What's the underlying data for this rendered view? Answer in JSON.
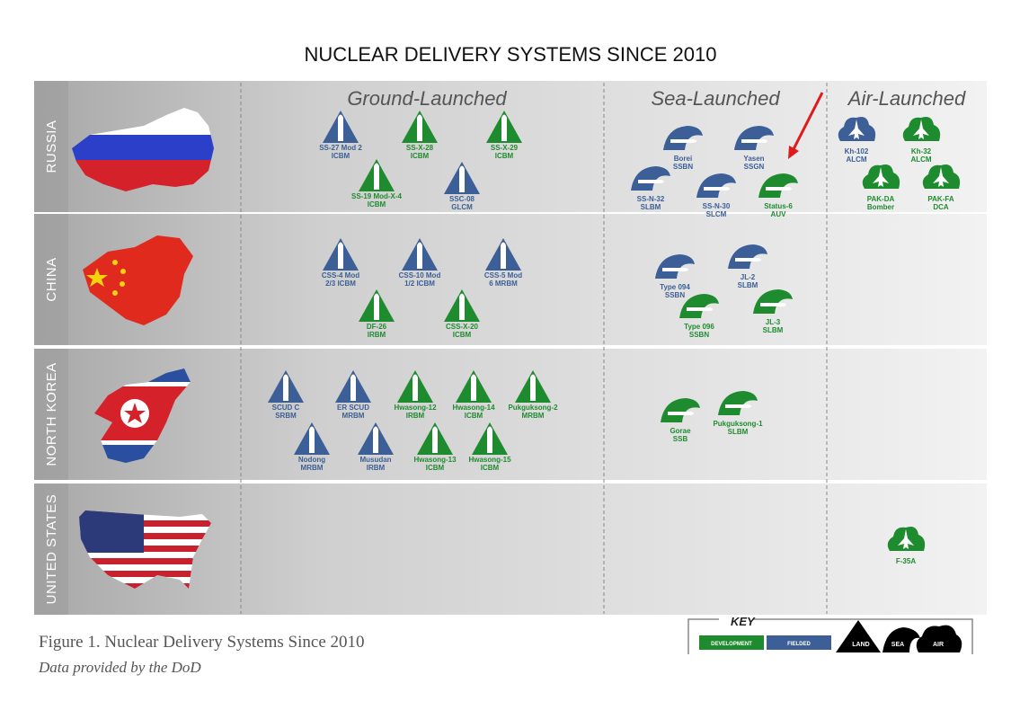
{
  "title": "NUCLEAR DELIVERY SYSTEMS SINCE 2010",
  "columns": [
    "Ground-Launched",
    "Sea-Launched",
    "Air-Launched"
  ],
  "rows": [
    {
      "country": "RUSSIA",
      "ground": [
        {
          "name": "SS-27 Mod 2",
          "type": "ICBM",
          "color": "#3b5f96"
        },
        {
          "name": "SS-X-28",
          "type": "ICBM",
          "color": "#1e8c2e"
        },
        {
          "name": "SS-X-29",
          "type": "ICBM",
          "color": "#1e8c2e"
        },
        {
          "name": "SS-19 Mod-X-4",
          "type": "ICBM",
          "color": "#1e8c2e"
        },
        {
          "name": "SSC-08",
          "type": "GLCM",
          "color": "#3b5f96"
        }
      ],
      "sea": [
        {
          "name": "Borei",
          "type": "SSBN",
          "color": "#3b5f96"
        },
        {
          "name": "Yasen",
          "type": "SSGN",
          "color": "#3b5f96"
        },
        {
          "name": "SS-N-32",
          "type": "SLBM",
          "color": "#3b5f96"
        },
        {
          "name": "SS-N-30",
          "type": "SLCM",
          "color": "#3b5f96"
        },
        {
          "name": "Status-6",
          "type": "AUV",
          "color": "#1e8c2e"
        }
      ],
      "air": [
        {
          "name": "Kh-102",
          "type": "ALCM",
          "color": "#3b5f96"
        },
        {
          "name": "Kh-32",
          "type": "ALCM",
          "color": "#1e8c2e"
        },
        {
          "name": "PAK-DA",
          "type": "Bomber",
          "color": "#1e8c2e"
        },
        {
          "name": "PAK-FA",
          "type": "DCA",
          "color": "#1e8c2e"
        }
      ]
    },
    {
      "country": "CHINA",
      "ground": [
        {
          "name": "CSS-4 Mod",
          "type": "2/3 ICBM",
          "color": "#3b5f96"
        },
        {
          "name": "CSS-10 Mod",
          "type": "1/2 ICBM",
          "color": "#3b5f96"
        },
        {
          "name": "CSS-5 Mod",
          "type": "6 MRBM",
          "color": "#3b5f96"
        },
        {
          "name": "DF-26",
          "type": "IRBM",
          "color": "#1e8c2e"
        },
        {
          "name": "CSS-X-20",
          "type": "ICBM",
          "color": "#1e8c2e"
        }
      ],
      "sea": [
        {
          "name": "Type 094",
          "type": "SSBN",
          "color": "#3b5f96"
        },
        {
          "name": "JL-2",
          "type": "SLBM",
          "color": "#3b5f96"
        },
        {
          "name": "Type 096",
          "type": "SSBN",
          "color": "#1e8c2e"
        },
        {
          "name": "JL-3",
          "type": "SLBM",
          "color": "#1e8c2e"
        }
      ],
      "air": []
    },
    {
      "country": "NORTH KOREA",
      "ground": [
        {
          "name": "SCUD C",
          "type": "SRBM",
          "color": "#3b5f96"
        },
        {
          "name": "ER SCUD",
          "type": "MRBM",
          "color": "#3b5f96"
        },
        {
          "name": "Hwasong-12",
          "type": "IRBM",
          "color": "#1e8c2e"
        },
        {
          "name": "Hwasong-14",
          "type": "ICBM",
          "color": "#1e8c2e"
        },
        {
          "name": "Pukguksong-2",
          "type": "MRBM",
          "color": "#1e8c2e"
        },
        {
          "name": "Nodong",
          "type": "MRBM",
          "color": "#3b5f96"
        },
        {
          "name": "Musudan",
          "type": "IRBM",
          "color": "#3b5f96"
        },
        {
          "name": "Hwasong-13",
          "type": "ICBM",
          "color": "#1e8c2e"
        },
        {
          "name": "Hwasong-15",
          "type": "ICBM",
          "color": "#1e8c2e"
        }
      ],
      "sea": [
        {
          "name": "Gorae",
          "type": "SSB",
          "color": "#1e8c2e"
        },
        {
          "name": "Pukguksong-1",
          "type": "SLBM",
          "color": "#1e8c2e"
        }
      ],
      "air": []
    },
    {
      "country": "UNITED STATES",
      "ground": [],
      "sea": [],
      "air": [
        {
          "name": "F-35A",
          "color": "#1e8c2e"
        }
      ]
    }
  ],
  "caption": "Figure 1. Nuclear Delivery Systems Since 2010",
  "source": "Data provided by the DoD",
  "key": {
    "title": "KEY",
    "status": [
      {
        "label": "DEVELOPMENT",
        "color": "#1e8c2e"
      },
      {
        "label": "FIELDED",
        "color": "#3b5f96"
      }
    ],
    "domains": [
      "LAND",
      "SEA",
      "AIR"
    ]
  }
}
